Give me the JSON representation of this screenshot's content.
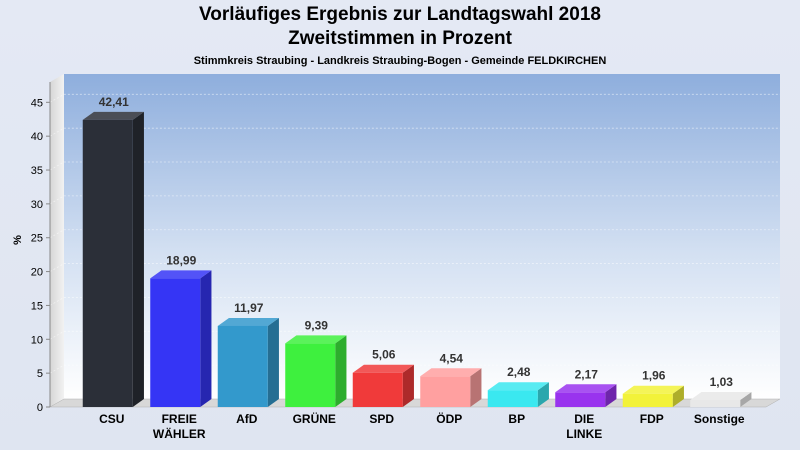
{
  "chart_data": {
    "type": "bar",
    "title": "Vorläufiges Ergebnis zur Landtagswahl 2018",
    "subtitle": "Zweitstimmen in Prozent",
    "subsubtitle": "Stimmkreis Straubing - Landkreis Straubing-Bogen - Gemeinde FELDKIRCHEN",
    "ylabel": "%",
    "xlabel": "",
    "ylim": [
      0,
      48
    ],
    "yticks": [
      0,
      5,
      10,
      15,
      20,
      25,
      30,
      35,
      40,
      45
    ],
    "grid": true,
    "categories": [
      [
        "CSU"
      ],
      [
        "FREIE",
        "WÄHLER"
      ],
      [
        "AfD"
      ],
      [
        "GRÜNE"
      ],
      [
        "SPD"
      ],
      [
        "ÖDP"
      ],
      [
        "BP"
      ],
      [
        "DIE",
        "LINKE"
      ],
      [
        "FDP"
      ],
      [
        "Sonstige"
      ]
    ],
    "values": [
      42.41,
      18.99,
      11.97,
      9.39,
      5.06,
      4.54,
      2.48,
      2.17,
      1.96,
      1.03
    ],
    "value_labels": [
      "42,41",
      "18,99",
      "11,97",
      "9,39",
      "5,06",
      "4,54",
      "2,48",
      "2,17",
      "1,96",
      "1,03"
    ],
    "colors": [
      "#2b2f38",
      "#3535f5",
      "#3399cc",
      "#3ef03e",
      "#f03a3a",
      "#ffa0a0",
      "#3ae8f0",
      "#9933ee",
      "#f2f23a",
      "#e8e8e8"
    ]
  }
}
